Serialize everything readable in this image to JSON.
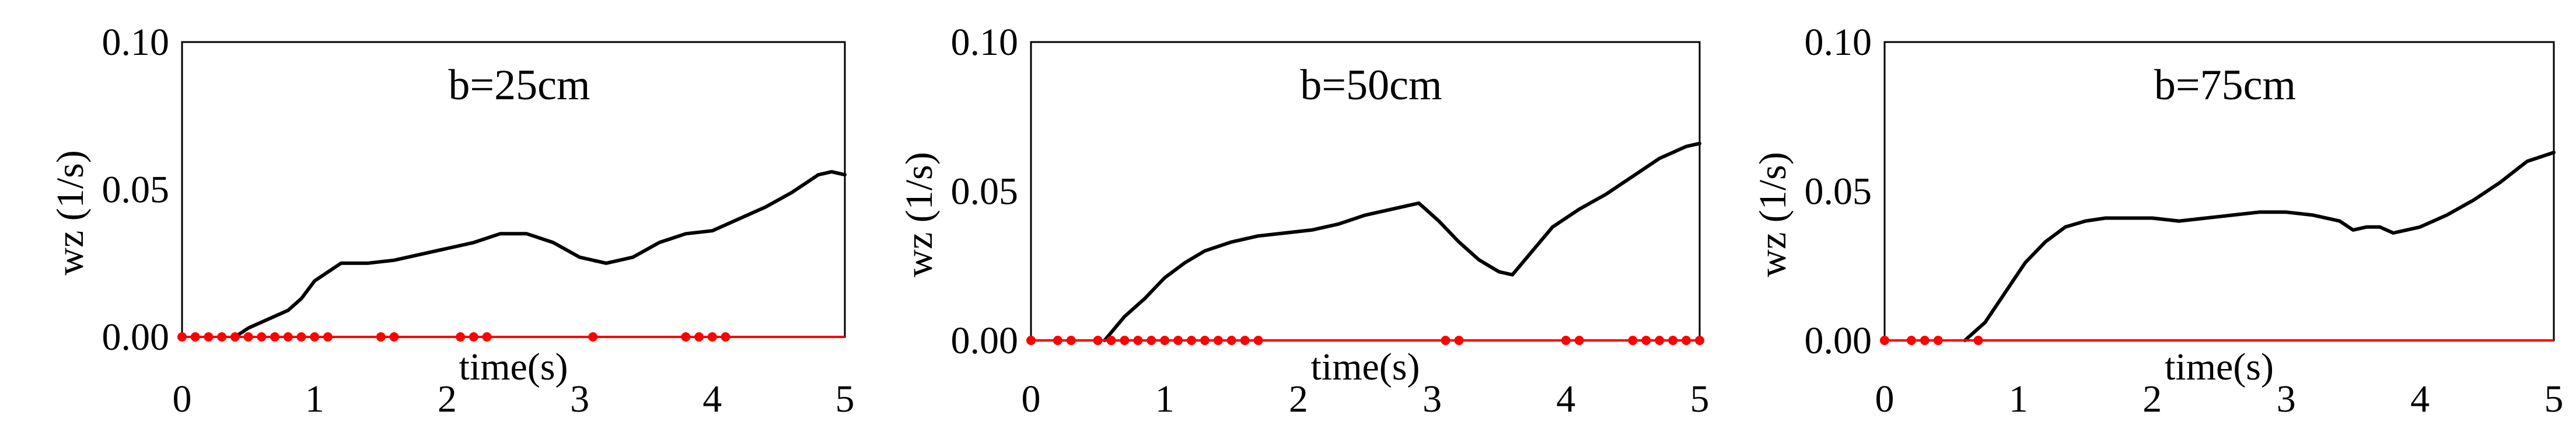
{
  "chart_data": [
    {
      "type": "line",
      "title": "b=25cm",
      "xlabel": "time(s)",
      "ylabel": "wz (1/s)",
      "xlim": [
        0,
        5
      ],
      "ylim": [
        0,
        0.1
      ],
      "x_ticks": [
        "0",
        "1",
        "2",
        "3",
        "4",
        "5"
      ],
      "y_ticks": [
        "0.00",
        "0.05",
        "0.10"
      ],
      "grid": false,
      "colors": {
        "main": "#000000",
        "secondary": "#ff0000"
      },
      "series": [
        {
          "style": "line",
          "color": "#000000",
          "x": [
            0.4,
            0.5,
            0.6,
            0.7,
            0.8,
            0.9,
            1.0,
            1.1,
            1.2,
            1.4,
            1.6,
            1.8,
            2.0,
            2.2,
            2.4,
            2.6,
            2.8,
            3.0,
            3.2,
            3.4,
            3.6,
            3.8,
            4.0,
            4.2,
            4.4,
            4.6,
            4.8,
            4.9,
            5.0
          ],
          "y": [
            0.0,
            0.003,
            0.005,
            0.007,
            0.009,
            0.013,
            0.019,
            0.022,
            0.025,
            0.025,
            0.026,
            0.028,
            0.03,
            0.032,
            0.035,
            0.035,
            0.032,
            0.027,
            0.025,
            0.027,
            0.032,
            0.035,
            0.036,
            0.04,
            0.044,
            0.049,
            0.055,
            0.056,
            0.055
          ]
        },
        {
          "style": "markers-line",
          "color": "#ff0000",
          "x": [
            0.0,
            0.1,
            0.2,
            0.3,
            0.4,
            0.5,
            0.6,
            0.7,
            0.8,
            0.9,
            1.0,
            1.1,
            1.5,
            1.6,
            2.1,
            2.2,
            2.3,
            3.1,
            3.8,
            3.9,
            4.0,
            4.1
          ],
          "y": [
            0,
            0,
            0,
            0,
            0,
            0,
            0,
            0,
            0,
            0,
            0,
            0,
            0,
            0,
            0,
            0,
            0,
            0,
            0,
            0,
            0,
            0
          ]
        }
      ]
    },
    {
      "type": "line",
      "title": "b=50cm",
      "xlabel": "time(s)",
      "ylabel": "wz (1/s)",
      "xlim": [
        0,
        5
      ],
      "ylim": [
        0,
        0.1
      ],
      "x_ticks": [
        "0",
        "1",
        "2",
        "3",
        "4",
        "5"
      ],
      "y_ticks": [
        "0.00",
        "0.05",
        "0.10"
      ],
      "grid": false,
      "colors": {
        "main": "#000000",
        "secondary": "#ff0000"
      },
      "series": [
        {
          "style": "line",
          "color": "#000000",
          "x": [
            0.55,
            0.7,
            0.85,
            1.0,
            1.15,
            1.3,
            1.5,
            1.7,
            1.9,
            2.1,
            2.3,
            2.5,
            2.7,
            2.9,
            3.05,
            3.2,
            3.35,
            3.5,
            3.6,
            3.75,
            3.9,
            4.1,
            4.3,
            4.5,
            4.7,
            4.9,
            5.0
          ],
          "y": [
            0.0,
            0.008,
            0.014,
            0.021,
            0.026,
            0.03,
            0.033,
            0.035,
            0.036,
            0.037,
            0.039,
            0.042,
            0.044,
            0.046,
            0.04,
            0.033,
            0.027,
            0.023,
            0.022,
            0.03,
            0.038,
            0.044,
            0.049,
            0.055,
            0.061,
            0.065,
            0.066
          ]
        },
        {
          "style": "markers-line",
          "color": "#ff0000",
          "x": [
            0.0,
            0.2,
            0.3,
            0.5,
            0.6,
            0.7,
            0.8,
            0.9,
            1.0,
            1.1,
            1.2,
            1.3,
            1.4,
            1.5,
            1.6,
            1.7,
            3.1,
            3.2,
            4.0,
            4.1,
            4.5,
            4.6,
            4.7,
            4.8,
            4.9,
            5.0
          ],
          "y": [
            0,
            0,
            0,
            0,
            0,
            0,
            0,
            0,
            0,
            0,
            0,
            0,
            0,
            0,
            0,
            0,
            0,
            0,
            0,
            0,
            0,
            0,
            0,
            0,
            0,
            0
          ]
        }
      ]
    },
    {
      "type": "line",
      "title": "b=75cm",
      "xlabel": "time(s)",
      "ylabel": "wz (1/s)",
      "xlim": [
        0,
        5
      ],
      "ylim": [
        0,
        0.1
      ],
      "x_ticks": [
        "0",
        "1",
        "2",
        "3",
        "4",
        "5"
      ],
      "y_ticks": [
        "0.00",
        "0.05",
        "0.10"
      ],
      "grid": false,
      "colors": {
        "main": "#000000",
        "secondary": "#ff0000"
      },
      "series": [
        {
          "style": "line",
          "color": "#000000",
          "x": [
            0.6,
            0.75,
            0.9,
            1.05,
            1.2,
            1.35,
            1.5,
            1.65,
            1.8,
            2.0,
            2.2,
            2.4,
            2.6,
            2.8,
            3.0,
            3.2,
            3.4,
            3.5,
            3.6,
            3.7,
            3.8,
            3.9,
            4.0,
            4.2,
            4.4,
            4.6,
            4.8,
            5.0
          ],
          "y": [
            0.0,
            0.006,
            0.016,
            0.026,
            0.033,
            0.038,
            0.04,
            0.041,
            0.041,
            0.041,
            0.04,
            0.041,
            0.042,
            0.043,
            0.043,
            0.042,
            0.04,
            0.037,
            0.038,
            0.038,
            0.036,
            0.037,
            0.038,
            0.042,
            0.047,
            0.053,
            0.06,
            0.063
          ]
        },
        {
          "style": "markers-line",
          "color": "#ff0000",
          "x": [
            0.0,
            0.2,
            0.3,
            0.4,
            0.7,
            5.0
          ],
          "marker_count": 5,
          "y": [
            0,
            0,
            0,
            0,
            0,
            0
          ]
        }
      ]
    }
  ]
}
